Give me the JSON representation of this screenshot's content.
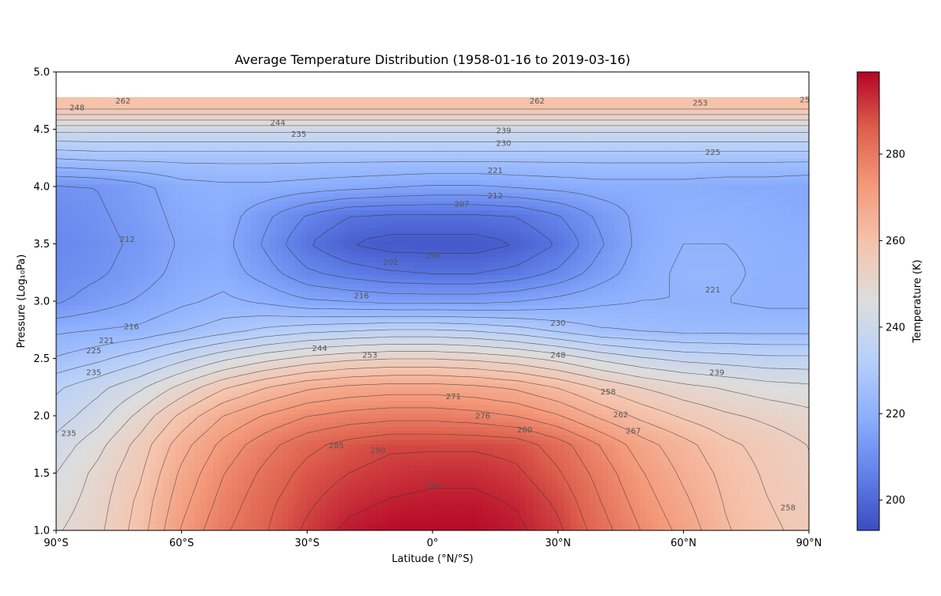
{
  "chart_data": {
    "type": "heatmap",
    "title": "Average Temperature Distribution (1958-01-16 to 2019-03-16)",
    "xlabel": "Latitude (°N/°S)",
    "ylabel": "Pressure (Log₁₀Pa)",
    "colorbar_label": "Temperature (K)",
    "colormap": "coolwarm",
    "color_range": [
      193,
      299
    ],
    "xlim": [
      -90,
      90
    ],
    "ylim": [
      1.0,
      5.0
    ],
    "x_ticks": [
      {
        "value": -90,
        "label": "90°S"
      },
      {
        "value": -60,
        "label": "60°S"
      },
      {
        "value": -30,
        "label": "30°S"
      },
      {
        "value": 0,
        "label": "0°"
      },
      {
        "value": 30,
        "label": "30°N"
      },
      {
        "value": 60,
        "label": "60°N"
      },
      {
        "value": 90,
        "label": "90°N"
      }
    ],
    "y_ticks": [
      {
        "value": 1.0,
        "label": "1.0"
      },
      {
        "value": 1.5,
        "label": "1.5"
      },
      {
        "value": 2.0,
        "label": "2.0"
      },
      {
        "value": 2.5,
        "label": "2.5"
      },
      {
        "value": 3.0,
        "label": "3.0"
      },
      {
        "value": 3.5,
        "label": "3.5"
      },
      {
        "value": 4.0,
        "label": "4.0"
      },
      {
        "value": 4.5,
        "label": "4.5"
      },
      {
        "value": 5.0,
        "label": "5.0"
      }
    ],
    "colorbar_ticks": [
      {
        "value": 200,
        "label": "200"
      },
      {
        "value": 220,
        "label": "220"
      },
      {
        "value": 240,
        "label": "240"
      },
      {
        "value": 260,
        "label": "260"
      },
      {
        "value": 280,
        "label": "280"
      }
    ],
    "latitudes": [
      -90,
      -80,
      -70,
      -60,
      -50,
      -40,
      -30,
      -20,
      -10,
      0,
      10,
      20,
      30,
      40,
      50,
      60,
      70,
      80,
      90
    ],
    "pressure_levels": [
      1.0,
      1.25,
      1.5,
      1.75,
      2.0,
      2.25,
      2.5,
      2.75,
      3.0,
      3.25,
      3.5,
      3.75,
      4.0,
      4.25,
      4.5,
      4.7
    ],
    "temperature_grid": [
      [
        248,
        252,
        260,
        272,
        280,
        285,
        291,
        296,
        298,
        298,
        298,
        296,
        291,
        283,
        276,
        270,
        263,
        259,
        256
      ],
      [
        246,
        251,
        259,
        270,
        278,
        284,
        289,
        293,
        295,
        296,
        296,
        294,
        289,
        281,
        274,
        268,
        262,
        258,
        255
      ],
      [
        244,
        250,
        257,
        268,
        276,
        282,
        287,
        290,
        292,
        293,
        293,
        291,
        286,
        279,
        272,
        266,
        261,
        257,
        254
      ],
      [
        241,
        247,
        255,
        265,
        273,
        279,
        284,
        287,
        289,
        289,
        289,
        288,
        283,
        276,
        269,
        264,
        259,
        256,
        253
      ],
      [
        237,
        242,
        250,
        259,
        267,
        272,
        276,
        278,
        279,
        279,
        278,
        276,
        272,
        266,
        261,
        257,
        254,
        252,
        250
      ],
      [
        234,
        238,
        243,
        250,
        257,
        262,
        266,
        268,
        269,
        269,
        268,
        266,
        262,
        257,
        253,
        250,
        248,
        246,
        245
      ],
      [
        226,
        229,
        233,
        238,
        243,
        247,
        250,
        252,
        253,
        253,
        252,
        250,
        247,
        243,
        240,
        238,
        237,
        236,
        236
      ],
      [
        220,
        221,
        222,
        225,
        228,
        231,
        233,
        234,
        235,
        235,
        234,
        232,
        229,
        226,
        225,
        224,
        224,
        224,
        224
      ],
      [
        211,
        214,
        217,
        220,
        222,
        220,
        217,
        216,
        215,
        215,
        215,
        216,
        218,
        220,
        221,
        221,
        221,
        220,
        220
      ],
      [
        209,
        211,
        214,
        218,
        219,
        214,
        208,
        205,
        203,
        202,
        202,
        204,
        208,
        214,
        219,
        222,
        222,
        220,
        220
      ],
      [
        208,
        210,
        213,
        217,
        218,
        211,
        203,
        198,
        196,
        196,
        196,
        198,
        203,
        211,
        218,
        221,
        221,
        220,
        219
      ],
      [
        209,
        211,
        214,
        218,
        219,
        213,
        207,
        203,
        202,
        202,
        202,
        203,
        207,
        213,
        218,
        220,
        220,
        219,
        218
      ],
      [
        211,
        212,
        215,
        219,
        220,
        220,
        219,
        218,
        217,
        216,
        216,
        217,
        218,
        219,
        219,
        219,
        218,
        218,
        217
      ],
      [
        226,
        227,
        227,
        227,
        227,
        227,
        227,
        227,
        227,
        227,
        227,
        227,
        227,
        227,
        227,
        227,
        227,
        227,
        227
      ],
      [
        241,
        241,
        241,
        241,
        241,
        241,
        241,
        241,
        241,
        241,
        241,
        241,
        241,
        241,
        241,
        241,
        241,
        241,
        241
      ],
      [
        260,
        260,
        260,
        260,
        260,
        260,
        260,
        260,
        260,
        260,
        260,
        260,
        260,
        260,
        260,
        260,
        260,
        260,
        260
      ]
    ],
    "contour_labels": [
      {
        "text": "262",
        "x": -74,
        "y": 4.75
      },
      {
        "text": "248",
        "x": -85,
        "y": 4.69
      },
      {
        "text": "244",
        "x": -37,
        "y": 4.56
      },
      {
        "text": "235",
        "x": -32,
        "y": 4.46
      },
      {
        "text": "239",
        "x": 17,
        "y": 4.49
      },
      {
        "text": "230",
        "x": 17,
        "y": 4.38
      },
      {
        "text": "225",
        "x": 67,
        "y": 4.3
      },
      {
        "text": "221",
        "x": 15,
        "y": 4.14
      },
      {
        "text": "212",
        "x": 15,
        "y": 3.92
      },
      {
        "text": "207",
        "x": 7,
        "y": 3.85
      },
      {
        "text": "262",
        "x": 25,
        "y": 4.75
      },
      {
        "text": "253",
        "x": 64,
        "y": 4.73
      },
      {
        "text": "25",
        "x": 89,
        "y": 4.76
      },
      {
        "text": "212",
        "x": -73,
        "y": 3.54
      },
      {
        "text": "198",
        "x": 0,
        "y": 3.4
      },
      {
        "text": "202",
        "x": -10,
        "y": 3.34
      },
      {
        "text": "216",
        "x": -17,
        "y": 3.05
      },
      {
        "text": "221",
        "x": 67,
        "y": 3.1
      },
      {
        "text": "216",
        "x": -72,
        "y": 2.78
      },
      {
        "text": "221",
        "x": -78,
        "y": 2.66
      },
      {
        "text": "225",
        "x": -81,
        "y": 2.57
      },
      {
        "text": "230",
        "x": 30,
        "y": 2.81
      },
      {
        "text": "244",
        "x": -27,
        "y": 2.59
      },
      {
        "text": "253",
        "x": -15,
        "y": 2.53
      },
      {
        "text": "248",
        "x": 30,
        "y": 2.53
      },
      {
        "text": "235",
        "x": -81,
        "y": 2.38
      },
      {
        "text": "239",
        "x": 68,
        "y": 2.38
      },
      {
        "text": "258",
        "x": 42,
        "y": 2.21
      },
      {
        "text": "271",
        "x": 5,
        "y": 2.17
      },
      {
        "text": "262",
        "x": 45,
        "y": 2.01
      },
      {
        "text": "276",
        "x": 12,
        "y": 2.0
      },
      {
        "text": "267",
        "x": 48,
        "y": 1.87
      },
      {
        "text": "280",
        "x": 22,
        "y": 1.88
      },
      {
        "text": "235",
        "x": -87,
        "y": 1.85
      },
      {
        "text": "285",
        "x": -23,
        "y": 1.74
      },
      {
        "text": "290",
        "x": -13,
        "y": 1.7
      },
      {
        "text": "294",
        "x": 0,
        "y": 1.39
      },
      {
        "text": "258",
        "x": 85,
        "y": 1.2
      }
    ]
  }
}
